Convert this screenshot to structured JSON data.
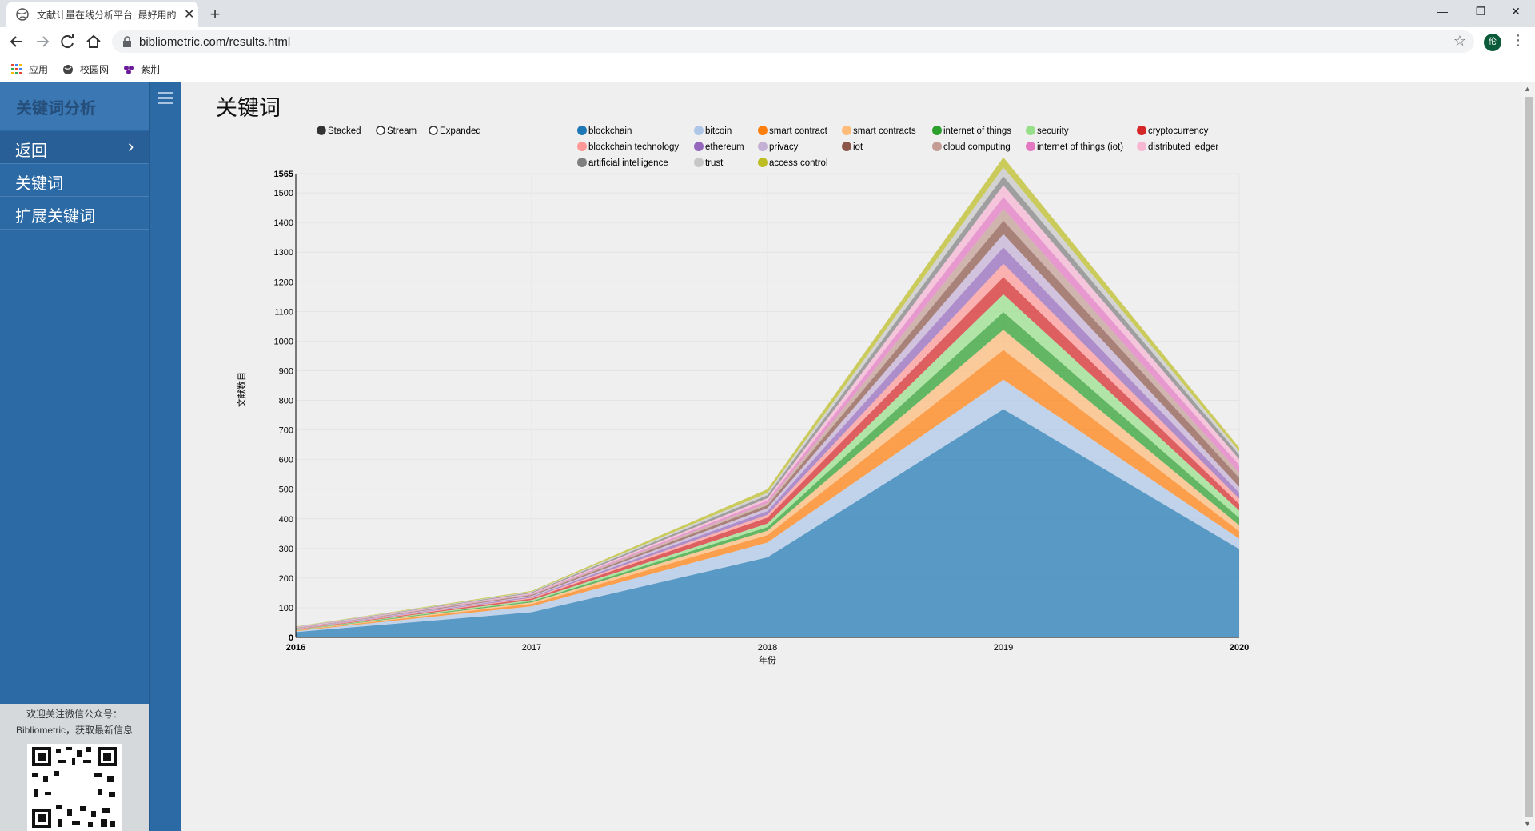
{
  "browser": {
    "tab_title": "文献计量在线分析平台| 最好用的",
    "url": "bibliometric.com/results.html",
    "avatar_text": "伦",
    "bookmarks": [
      {
        "label": "应用",
        "icon": "apps-grid-icon"
      },
      {
        "label": "校园网",
        "icon": "globe-icon"
      },
      {
        "label": "紫荆",
        "icon": "flower-icon"
      }
    ]
  },
  "sidebar": {
    "brand": "关键词分析",
    "items": [
      {
        "label": "返回",
        "chevron": "›"
      },
      {
        "label": "关键词"
      },
      {
        "label": "扩展关键词"
      }
    ],
    "wechat_line1": "欢迎关注微信公众号：",
    "wechat_line2": "Bibliometric，获取最新信息"
  },
  "main": {
    "title": "关键词"
  },
  "controls": [
    "Stacked",
    "Stream",
    "Expanded"
  ],
  "chart_data": {
    "type": "area",
    "mode": "stacked",
    "xlabel": "年份",
    "ylabel": "文献数目",
    "x": [
      2016,
      2017,
      2018,
      2019,
      2020
    ],
    "ylim": [
      0,
      1565
    ],
    "yticks": [
      0,
      100,
      200,
      300,
      400,
      500,
      600,
      700,
      800,
      900,
      1000,
      1100,
      1200,
      1300,
      1400,
      1500,
      1565
    ],
    "grid": true,
    "legend_position": "top",
    "series": [
      {
        "name": "blockchain",
        "color": "#1f77b4",
        "values": [
          18,
          85,
          270,
          770,
          298
        ]
      },
      {
        "name": "bitcoin",
        "color": "#aec7e8",
        "values": [
          3,
          20,
          50,
          100,
          35
        ]
      },
      {
        "name": "smart contract",
        "color": "#ff7f0e",
        "values": [
          2,
          8,
          25,
          100,
          25
        ]
      },
      {
        "name": "smart contracts",
        "color": "#ffbb78",
        "values": [
          1,
          5,
          15,
          68,
          20
        ]
      },
      {
        "name": "internet of things",
        "color": "#2ca02c",
        "values": [
          1,
          4,
          12,
          60,
          25
        ]
      },
      {
        "name": "security",
        "color": "#98df8a",
        "values": [
          1,
          4,
          12,
          60,
          25
        ]
      },
      {
        "name": "cryptocurrency",
        "color": "#d62728",
        "values": [
          1,
          5,
          20,
          58,
          22
        ]
      },
      {
        "name": "blockchain technology",
        "color": "#ff9896",
        "values": [
          1,
          3,
          10,
          45,
          18
        ]
      },
      {
        "name": "ethereum",
        "color": "#9467bd",
        "values": [
          1,
          3,
          12,
          55,
          20
        ]
      },
      {
        "name": "privacy",
        "color": "#c5b0d5",
        "values": [
          1,
          3,
          10,
          45,
          20
        ]
      },
      {
        "name": "iot",
        "color": "#8c564b",
        "values": [
          1,
          3,
          10,
          45,
          30
        ]
      },
      {
        "name": "cloud computing",
        "color": "#c49c94",
        "values": [
          1,
          2,
          8,
          40,
          18
        ]
      },
      {
        "name": "internet of things (iot)",
        "color": "#e377c2",
        "values": [
          1,
          2,
          8,
          40,
          25
        ]
      },
      {
        "name": "distributed ledger",
        "color": "#f7b6d2",
        "values": [
          1,
          2,
          8,
          40,
          20
        ]
      },
      {
        "name": "artificial intelligence",
        "color": "#7f7f7f",
        "values": [
          1,
          3,
          10,
          30,
          15
        ]
      },
      {
        "name": "trust",
        "color": "#c7c7c7",
        "values": [
          1,
          2,
          8,
          30,
          12
        ]
      },
      {
        "name": "access control",
        "color": "#bcbd22",
        "values": [
          1,
          3,
          12,
          34,
          12
        ]
      }
    ]
  }
}
